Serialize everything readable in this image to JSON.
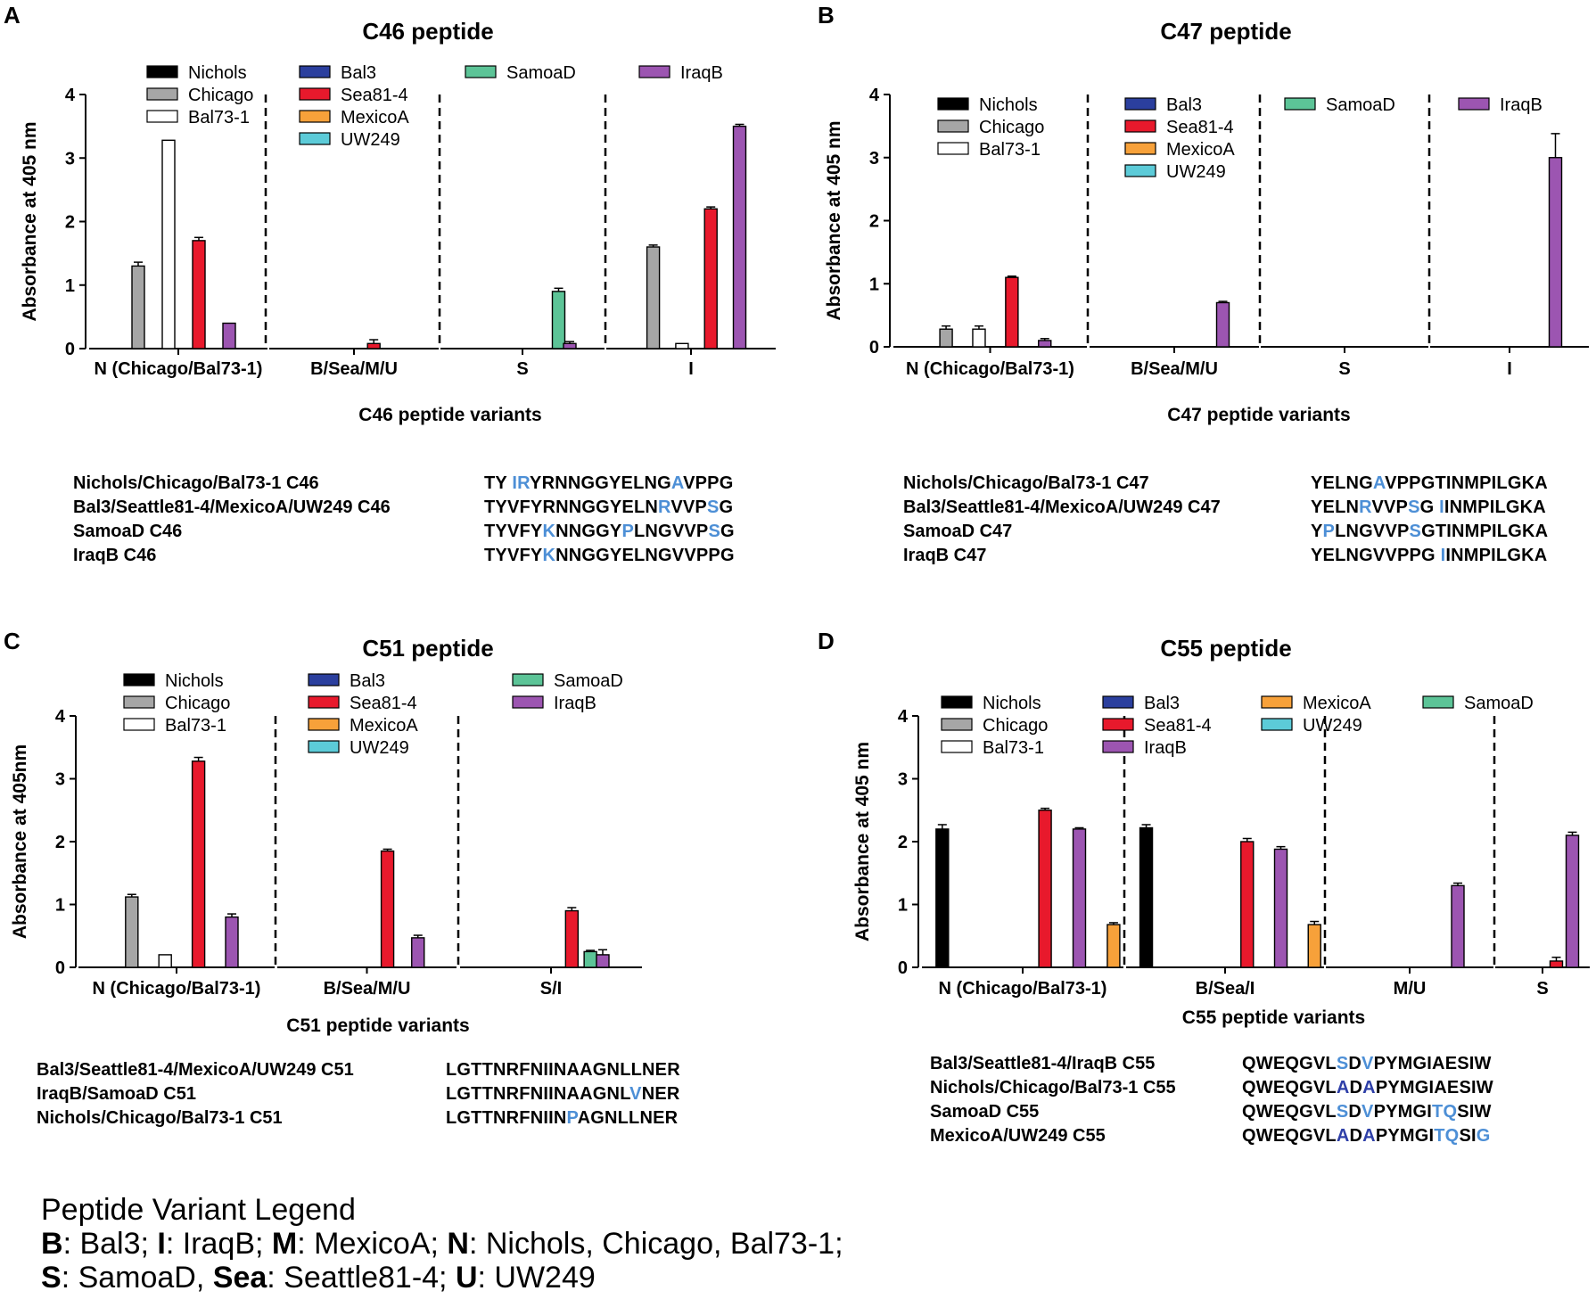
{
  "colors": {
    "Nichols": "#000000",
    "Chicago": "#a6a6a6",
    "Bal73-1": "#ffffff",
    "Bal3": "#2b3f9e",
    "Sea81-4": "#e8192c",
    "MexicoA": "#f7a13a",
    "UW249": "#5ccbd8",
    "SamoaD": "#5cc497",
    "IraqB": "#9c55b1",
    "highlight": "#4d8fd6"
  },
  "panels": [
    {
      "letter": "A",
      "chart_data": {
        "type": "bar",
        "title": "C46 peptide",
        "ylabel": "Absorbance at 405 nm",
        "xlabel": "C46 peptide variants",
        "ylim": [
          0,
          4
        ],
        "yticks": [
          "0",
          "1",
          "2",
          "3",
          "4"
        ],
        "groups": [
          {
            "label": "N (Chicago/Bal73-1)",
            "legend": [
              "Nichols",
              "Chicago",
              "Bal73-1"
            ],
            "bars": [
              {
                "strain": "Chicago",
                "value": 1.3,
                "err": 0.06
              },
              {
                "strain": "Bal73-1",
                "value": 3.28,
                "err": 0
              },
              {
                "strain": "Sea81-4",
                "value": 1.7,
                "err": 0.05
              },
              {
                "strain": "IraqB",
                "value": 0.4,
                "err": 0
              }
            ]
          },
          {
            "label": "B/Sea/M/U",
            "legend": [
              "Bal3",
              "Sea81-4",
              "MexicoA",
              "UW249"
            ],
            "bars": [
              {
                "strain": "Sea81-4",
                "value": 0.08,
                "err": 0.06
              }
            ]
          },
          {
            "label": "S",
            "legend": [
              "SamoaD"
            ],
            "bars": [
              {
                "strain": "SamoaD",
                "value": 0.9,
                "err": 0.05
              },
              {
                "strain": "IraqB",
                "value": 0.08,
                "err": 0.03
              }
            ]
          },
          {
            "label": "I",
            "legend": [
              "IraqB"
            ],
            "bars": [
              {
                "strain": "Chicago",
                "value": 1.6,
                "err": 0.03
              },
              {
                "strain": "Bal73-1",
                "value": 0.08,
                "err": 0
              },
              {
                "strain": "Sea81-4",
                "value": 2.2,
                "err": 0.03
              },
              {
                "strain": "IraqB",
                "value": 3.5,
                "err": 0.03
              }
            ]
          }
        ]
      },
      "sequences": [
        {
          "name": "Nichols/Chicago/Bal73-1 C46",
          "seq": [
            [
              "TY ",
              0
            ],
            [
              "IR",
              1
            ],
            [
              "YRNNGGYELNG",
              0
            ],
            [
              "A",
              1
            ],
            [
              "VPPG",
              0
            ]
          ]
        },
        {
          "name": "Bal3/Seattle81-4/MexicoA/UW249 C46",
          "seq": [
            [
              "TYVFYRNNGGYELN",
              0
            ],
            [
              "R",
              1
            ],
            [
              "VVP",
              0
            ],
            [
              "S",
              1
            ],
            [
              "G",
              0
            ]
          ]
        },
        {
          "name": "SamoaD C46",
          "seq": [
            [
              "TYVFY",
              0
            ],
            [
              "K",
              1
            ],
            [
              "NNGGY",
              0
            ],
            [
              "P",
              1
            ],
            [
              "LNGVVP",
              0
            ],
            [
              "S",
              1
            ],
            [
              "G",
              0
            ]
          ]
        },
        {
          "name": "IraqB C46",
          "seq": [
            [
              "TYVFY",
              0
            ],
            [
              "K",
              1
            ],
            [
              "NNGGYELNGVVPPG",
              0
            ]
          ]
        }
      ]
    },
    {
      "letter": "B",
      "chart_data": {
        "type": "bar",
        "title": "C47 peptide",
        "ylabel": "Absorbance at 405 nm",
        "xlabel": "C47 peptide variants",
        "ylim": [
          0,
          4
        ],
        "yticks": [
          "0",
          "1",
          "2",
          "3",
          "4"
        ],
        "groups": [
          {
            "label": "N (Chicago/Bal73-1)",
            "legend": [
              "Nichols",
              "Chicago",
              "Bal73-1"
            ],
            "bars": [
              {
                "strain": "Chicago",
                "value": 0.28,
                "err": 0.05
              },
              {
                "strain": "Bal73-1",
                "value": 0.28,
                "err": 0.05
              },
              {
                "strain": "Sea81-4",
                "value": 1.1,
                "err": 0.02
              },
              {
                "strain": "IraqB",
                "value": 0.1,
                "err": 0.03
              }
            ]
          },
          {
            "label": "B/Sea/M/U",
            "legend": [
              "Bal3",
              "Sea81-4",
              "MexicoA",
              "UW249"
            ],
            "bars": [
              {
                "strain": "IraqB",
                "value": 0.7,
                "err": 0.02
              }
            ]
          },
          {
            "label": "S",
            "legend": [
              "SamoaD"
            ],
            "bars": []
          },
          {
            "label": "I",
            "legend": [
              "IraqB"
            ],
            "bars": [
              {
                "strain": "IraqB",
                "value": 3.0,
                "err": 0.38
              }
            ]
          }
        ]
      },
      "sequences": [
        {
          "name": "Nichols/Chicago/Bal73-1 C47",
          "seq": [
            [
              "YELNG",
              0
            ],
            [
              "A",
              1
            ],
            [
              "VPPGTINMPILGKA",
              0
            ]
          ]
        },
        {
          "name": "Bal3/Seattle81-4/MexicoA/UW249 C47",
          "seq": [
            [
              "YELN",
              0
            ],
            [
              "R",
              1
            ],
            [
              "VVP",
              0
            ],
            [
              "S",
              1
            ],
            [
              "G ",
              0
            ],
            [
              "I",
              1
            ],
            [
              "INMPILGKA",
              0
            ]
          ]
        },
        {
          "name": "SamoaD C47",
          "seq": [
            [
              "Y",
              0
            ],
            [
              "P",
              1
            ],
            [
              "LNGVVP",
              0
            ],
            [
              "S",
              1
            ],
            [
              "GTINMPILGKA",
              0
            ]
          ]
        },
        {
          "name": "IraqB C47",
          "seq": [
            [
              "YELNGVVPPG ",
              0
            ],
            [
              "I",
              1
            ],
            [
              "INMPILGKA",
              0
            ]
          ]
        }
      ]
    },
    {
      "letter": "C",
      "chart_data": {
        "type": "bar",
        "title": "C51 peptide",
        "ylabel": "Absorbance at 405nm",
        "xlabel": "C51 peptide variants",
        "ylim": [
          0,
          4
        ],
        "yticks": [
          "0",
          "1",
          "2",
          "3",
          "4"
        ],
        "groups": [
          {
            "label": "N (Chicago/Bal73-1)",
            "legend": [
              "Nichols",
              "Chicago",
              "Bal73-1"
            ],
            "bars": [
              {
                "strain": "Chicago",
                "value": 1.12,
                "err": 0.04
              },
              {
                "strain": "Bal73-1",
                "value": 0.2,
                "err": 0
              },
              {
                "strain": "Sea81-4",
                "value": 3.28,
                "err": 0.06
              },
              {
                "strain": "IraqB",
                "value": 0.8,
                "err": 0.05
              }
            ]
          },
          {
            "label": "B/Sea/M/U",
            "legend": [
              "Bal3",
              "Sea81-4",
              "MexicoA",
              "UW249"
            ],
            "bars": [
              {
                "strain": "Sea81-4",
                "value": 1.85,
                "err": 0.03
              },
              {
                "strain": "IraqB",
                "value": 0.47,
                "err": 0.04
              }
            ]
          },
          {
            "label": "S/I",
            "legend": [
              "SamoaD",
              "IraqB"
            ],
            "bars": [
              {
                "strain": "Sea81-4",
                "value": 0.9,
                "err": 0.05
              },
              {
                "strain": "SamoaD",
                "value": 0.25,
                "err": 0.02
              },
              {
                "strain": "IraqB",
                "value": 0.2,
                "err": 0.08
              }
            ]
          }
        ]
      },
      "sequences": [
        {
          "name": "Bal3/Seattle81-4/MexicoA/UW249 C51",
          "seq": [
            [
              "LGTTNRFNIINAAGNLLNER",
              0
            ]
          ]
        },
        {
          "name": "IraqB/SamoaD C51",
          "seq": [
            [
              "LGTTNRFNIINAAGNL",
              0
            ],
            [
              "V",
              1
            ],
            [
              "NER",
              0
            ]
          ]
        },
        {
          "name": "Nichols/Chicago/Bal73-1 C51",
          "seq": [
            [
              "LGTTNRFNIIN",
              0
            ],
            [
              "P",
              1
            ],
            [
              "AGNLLNER",
              0
            ]
          ]
        }
      ]
    },
    {
      "letter": "D",
      "chart_data": {
        "type": "bar",
        "title": "C55 peptide",
        "ylabel": "Absorbance at 405 nm",
        "xlabel": "C55 peptide variants",
        "ylim": [
          0,
          4
        ],
        "yticks": [
          "0",
          "1",
          "2",
          "3",
          "4"
        ],
        "groups": [
          {
            "label": "N (Chicago/Bal73-1)",
            "legend": [
              "Nichols",
              "Chicago",
              "Bal73-1"
            ],
            "bars": [
              {
                "strain": "Nichols",
                "value": 2.2,
                "err": 0.07
              },
              {
                "strain": "Sea81-4",
                "value": 2.5,
                "err": 0.03
              },
              {
                "strain": "IraqB",
                "value": 2.2,
                "err": 0.02
              },
              {
                "strain": "MexicoA",
                "value": 0.68,
                "err": 0.03
              }
            ]
          },
          {
            "label": "B/Sea/I",
            "legend": [
              "Bal3",
              "Sea81-4",
              "IraqB"
            ],
            "bars": [
              {
                "strain": "Nichols",
                "value": 2.22,
                "err": 0.05
              },
              {
                "strain": "Sea81-4",
                "value": 2.0,
                "err": 0.05
              },
              {
                "strain": "IraqB",
                "value": 1.88,
                "err": 0.04
              },
              {
                "strain": "MexicoA",
                "value": 0.68,
                "err": 0.05
              }
            ]
          },
          {
            "label": "M/U",
            "legend": [
              "MexicoA",
              "UW249"
            ],
            "bars": [
              {
                "strain": "IraqB",
                "value": 1.3,
                "err": 0.04
              }
            ]
          },
          {
            "label": "S",
            "legend": [
              "SamoaD"
            ],
            "bars": [
              {
                "strain": "Sea81-4",
                "value": 0.1,
                "err": 0.06
              },
              {
                "strain": "IraqB",
                "value": 2.1,
                "err": 0.05
              }
            ]
          }
        ]
      },
      "sequences": [
        {
          "name": "Bal3/Seattle81-4/IraqB C55",
          "seq": [
            [
              "QWEQGVL",
              0
            ],
            [
              "S",
              1
            ],
            [
              "D",
              0
            ],
            [
              "V",
              1
            ],
            [
              "PYMGIAESIW",
              0
            ]
          ]
        },
        {
          "name": "Nichols/Chicago/Bal73-1  C55",
          "seq": [
            [
              "QWEQGVL",
              0
            ],
            [
              "A",
              2
            ],
            [
              "D",
              0
            ],
            [
              "A",
              2
            ],
            [
              "PYMGIAESIW",
              0
            ]
          ]
        },
        {
          "name": "SamoaD C55",
          "seq": [
            [
              "QWEQGVL",
              0
            ],
            [
              "S",
              1
            ],
            [
              "D",
              0
            ],
            [
              "V",
              1
            ],
            [
              "PYMGI",
              0
            ],
            [
              "TQ",
              1
            ],
            [
              "SIW",
              0
            ]
          ]
        },
        {
          "name": "MexicoA/UW249 C55",
          "seq": [
            [
              "QWEQGVL",
              0
            ],
            [
              "A",
              2
            ],
            [
              "D",
              0
            ],
            [
              "A",
              2
            ],
            [
              "PYMGI",
              0
            ],
            [
              "TQ",
              1
            ],
            [
              "SI",
              0
            ],
            [
              "G",
              1
            ]
          ]
        }
      ]
    }
  ],
  "variant_legend": {
    "title": "Peptide Variant Legend",
    "lines": [
      [
        [
          "B",
          1
        ],
        [
          ": Bal3; ",
          0
        ],
        [
          "I",
          1
        ],
        [
          ": IraqB; ",
          0
        ],
        [
          "M",
          1
        ],
        [
          ": MexicoA; ",
          0
        ],
        [
          "N",
          1
        ],
        [
          ": Nichols, Chicago, Bal73-1;",
          0
        ]
      ],
      [
        [
          "S",
          1
        ],
        [
          ":  SamoaD, ",
          0
        ],
        [
          "Sea",
          1
        ],
        [
          ": Seattle81-4; ",
          0
        ],
        [
          "U",
          1
        ],
        [
          ": UW249",
          0
        ]
      ]
    ]
  }
}
